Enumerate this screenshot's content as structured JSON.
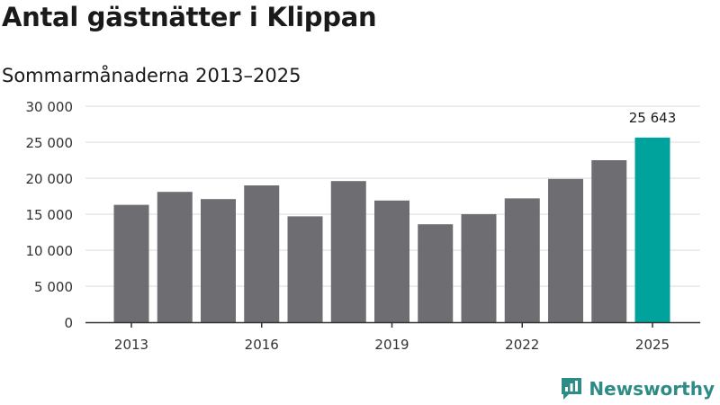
{
  "chart_data": {
    "type": "bar",
    "title": "Antal gästnätter i Klippan",
    "subtitle": "Sommarmånaderna 2013–2025",
    "categories": [
      "2013",
      "2014",
      "2015",
      "2016",
      "2017",
      "2018",
      "2019",
      "2020",
      "2021",
      "2022",
      "2023",
      "2024",
      "2025"
    ],
    "values": [
      16300,
      18100,
      17100,
      19000,
      14700,
      19600,
      16900,
      13600,
      15000,
      17200,
      19900,
      22500,
      25643
    ],
    "x_tick_labels": [
      "2013",
      "2016",
      "2019",
      "2022",
      "2025"
    ],
    "y_tick_labels": [
      "0",
      "5 000",
      "10 000",
      "15 000",
      "20 000",
      "25 000",
      "30 000"
    ],
    "ylim": [
      0,
      30000
    ],
    "grid": true,
    "highlight_index": 12,
    "highlight_label": "25 643",
    "colors": {
      "bar": "#6e6d72",
      "highlight": "#00a39b",
      "grid": "#d9d9d9",
      "axis": "#333333"
    }
  },
  "branding": {
    "name": "Newsworthy",
    "logo_icon": "bar-chart-speech-bubble-icon"
  }
}
